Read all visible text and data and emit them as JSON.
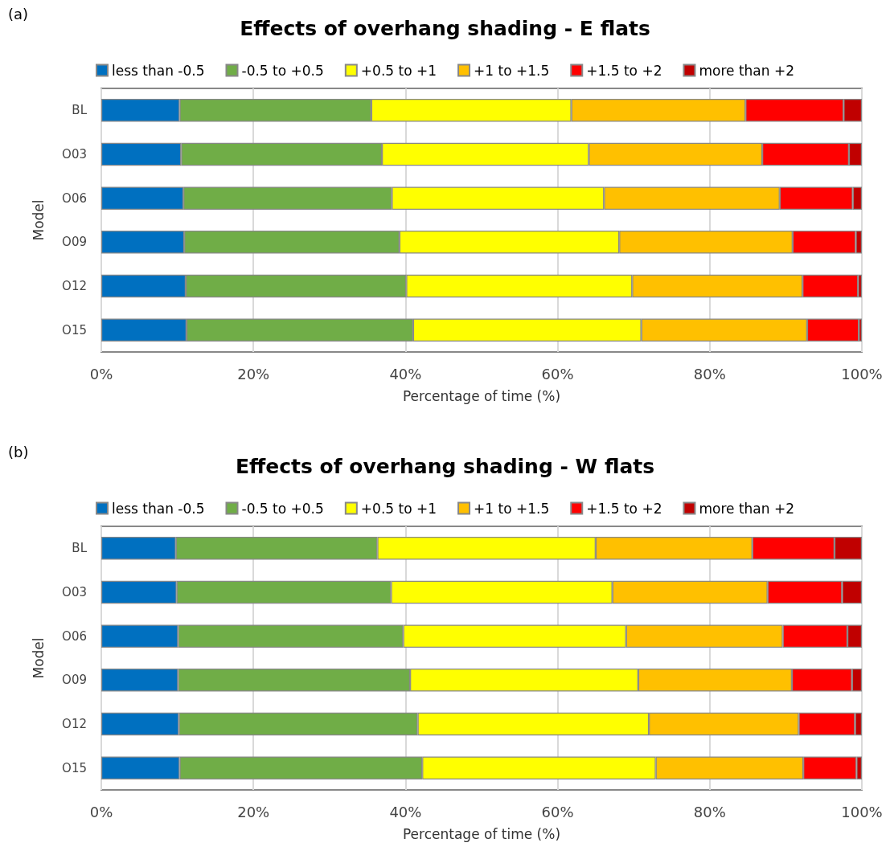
{
  "chart_data": [
    {
      "type": "bar",
      "orientation": "horizontal",
      "stacked": true,
      "title": "Effects of overhang shading - E flats",
      "annotations": [
        "(a)"
      ],
      "xlabel": "Percentage of time (%)",
      "ylabel": "Model",
      "categories": [
        "BL",
        "O03",
        "O06",
        "O09",
        "O12",
        "O15"
      ],
      "series": [
        {
          "name": "less than -0.5",
          "color": "#0070c0",
          "values": [
            10.3,
            10.5,
            10.8,
            10.9,
            11.1,
            11.2
          ]
        },
        {
          "name": "-0.5 to +0.5",
          "color": "#70ad47",
          "values": [
            25.2,
            26.4,
            27.4,
            28.3,
            29.0,
            29.8
          ]
        },
        {
          "name": "+0.5 to +1",
          "color": "#ffff00",
          "values": [
            26.3,
            27.2,
            27.9,
            28.9,
            29.7,
            30.0
          ]
        },
        {
          "name": "+1 to +1.5",
          "color": "#ffc000",
          "values": [
            22.9,
            22.8,
            23.1,
            22.8,
            22.4,
            21.8
          ]
        },
        {
          "name": "+1.5 to +2",
          "color": "#ff0000",
          "values": [
            12.9,
            11.4,
            9.6,
            8.3,
            7.3,
            6.8
          ]
        },
        {
          "name": "more than +2",
          "color": "#c00000",
          "values": [
            2.4,
            1.7,
            1.2,
            0.8,
            0.5,
            0.4
          ]
        }
      ],
      "xlim": [
        0,
        100
      ],
      "xticks": [
        {
          "value": 0,
          "label": "0%"
        },
        {
          "value": 20,
          "label": "20%"
        },
        {
          "value": 40,
          "label": "40%"
        },
        {
          "value": 60,
          "label": "60%"
        },
        {
          "value": 80,
          "label": "80%"
        },
        {
          "value": 100,
          "label": "100%"
        }
      ],
      "grid": "x",
      "legend": "top"
    },
    {
      "type": "bar",
      "orientation": "horizontal",
      "stacked": true,
      "title": "Effects of overhang shading - W flats",
      "annotations": [
        "(b)"
      ],
      "xlabel": "Percentage of time (%)",
      "ylabel": "Model",
      "categories": [
        "BL",
        "O03",
        "O06",
        "O09",
        "O12",
        "O15"
      ],
      "series": [
        {
          "name": "less than -0.5",
          "color": "#0070c0",
          "values": [
            9.8,
            9.9,
            10.1,
            10.1,
            10.2,
            10.3
          ]
        },
        {
          "name": "-0.5 to +0.5",
          "color": "#70ad47",
          "values": [
            26.5,
            28.2,
            29.6,
            30.5,
            31.4,
            31.9
          ]
        },
        {
          "name": "+0.5 to +1",
          "color": "#ffff00",
          "values": [
            28.7,
            29.1,
            29.3,
            30.0,
            30.4,
            30.7
          ]
        },
        {
          "name": "+1 to +1.5",
          "color": "#ffc000",
          "values": [
            20.6,
            20.4,
            20.6,
            20.2,
            19.7,
            19.4
          ]
        },
        {
          "name": "+1.5 to +2",
          "color": "#ff0000",
          "values": [
            10.8,
            9.8,
            8.5,
            7.9,
            7.4,
            7.0
          ]
        },
        {
          "name": "more than +2",
          "color": "#c00000",
          "values": [
            3.6,
            2.6,
            1.9,
            1.3,
            0.9,
            0.7
          ]
        }
      ],
      "xlim": [
        0,
        100
      ],
      "xticks": [
        {
          "value": 0,
          "label": "0%"
        },
        {
          "value": 20,
          "label": "20%"
        },
        {
          "value": 40,
          "label": "40%"
        },
        {
          "value": 60,
          "label": "60%"
        },
        {
          "value": 80,
          "label": "80%"
        },
        {
          "value": 100,
          "label": "100%"
        }
      ],
      "grid": "x",
      "legend": "top"
    }
  ]
}
